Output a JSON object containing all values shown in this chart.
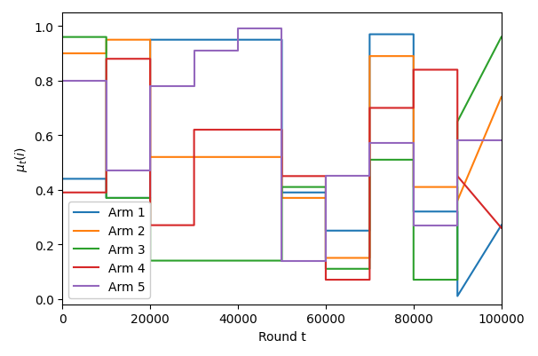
{
  "xlabel": "Round t",
  "ylabel": "$\\mu_t(i)$",
  "xlim": [
    0,
    100000
  ],
  "ylim": [
    -0.02,
    1.05
  ],
  "arms": [
    {
      "name": "Arm 1",
      "color": "#1f77b4",
      "x": [
        0,
        10000,
        10000,
        20000,
        20000,
        50000,
        50000,
        60000,
        60000,
        70000,
        70000,
        80000,
        80000,
        90000,
        90000,
        100000
      ],
      "y": [
        0.44,
        0.44,
        0.37,
        0.37,
        0.95,
        0.95,
        0.39,
        0.39,
        0.25,
        0.25,
        0.97,
        0.97,
        0.32,
        0.32,
        0.01,
        0.27
      ]
    },
    {
      "name": "Arm 2",
      "color": "#ff7f0e",
      "x": [
        0,
        10000,
        10000,
        20000,
        20000,
        50000,
        50000,
        60000,
        60000,
        70000,
        70000,
        80000,
        80000,
        90000,
        90000,
        100000
      ],
      "y": [
        0.9,
        0.9,
        0.95,
        0.95,
        0.52,
        0.52,
        0.37,
        0.37,
        0.15,
        0.15,
        0.89,
        0.89,
        0.41,
        0.41,
        0.36,
        0.74
      ]
    },
    {
      "name": "Arm 3",
      "color": "#2ca02c",
      "x": [
        0,
        10000,
        10000,
        20000,
        20000,
        50000,
        50000,
        60000,
        60000,
        70000,
        70000,
        80000,
        80000,
        90000,
        90000,
        100000
      ],
      "y": [
        0.96,
        0.96,
        0.37,
        0.37,
        0.14,
        0.14,
        0.41,
        0.41,
        0.11,
        0.11,
        0.51,
        0.51,
        0.07,
        0.07,
        0.65,
        0.96
      ]
    },
    {
      "name": "Arm 4",
      "color": "#d62728",
      "x": [
        0,
        10000,
        10000,
        20000,
        20000,
        30000,
        30000,
        50000,
        50000,
        60000,
        60000,
        70000,
        70000,
        80000,
        80000,
        90000,
        90000,
        100000
      ],
      "y": [
        0.39,
        0.39,
        0.88,
        0.88,
        0.27,
        0.27,
        0.62,
        0.62,
        0.45,
        0.45,
        0.07,
        0.07,
        0.7,
        0.7,
        0.84,
        0.84,
        0.45,
        0.26
      ]
    },
    {
      "name": "Arm 5",
      "color": "#9467bd",
      "x": [
        0,
        10000,
        10000,
        20000,
        20000,
        30000,
        30000,
        40000,
        40000,
        50000,
        50000,
        60000,
        60000,
        70000,
        70000,
        80000,
        80000,
        90000,
        90000,
        100000
      ],
      "y": [
        0.8,
        0.8,
        0.47,
        0.47,
        0.78,
        0.78,
        0.91,
        0.91,
        0.99,
        0.99,
        0.14,
        0.14,
        0.45,
        0.45,
        0.57,
        0.57,
        0.27,
        0.27,
        0.58,
        0.58
      ]
    }
  ],
  "legend_loc": "lower left",
  "figsize": [
    6.06,
    4.02
  ],
  "dpi": 100
}
